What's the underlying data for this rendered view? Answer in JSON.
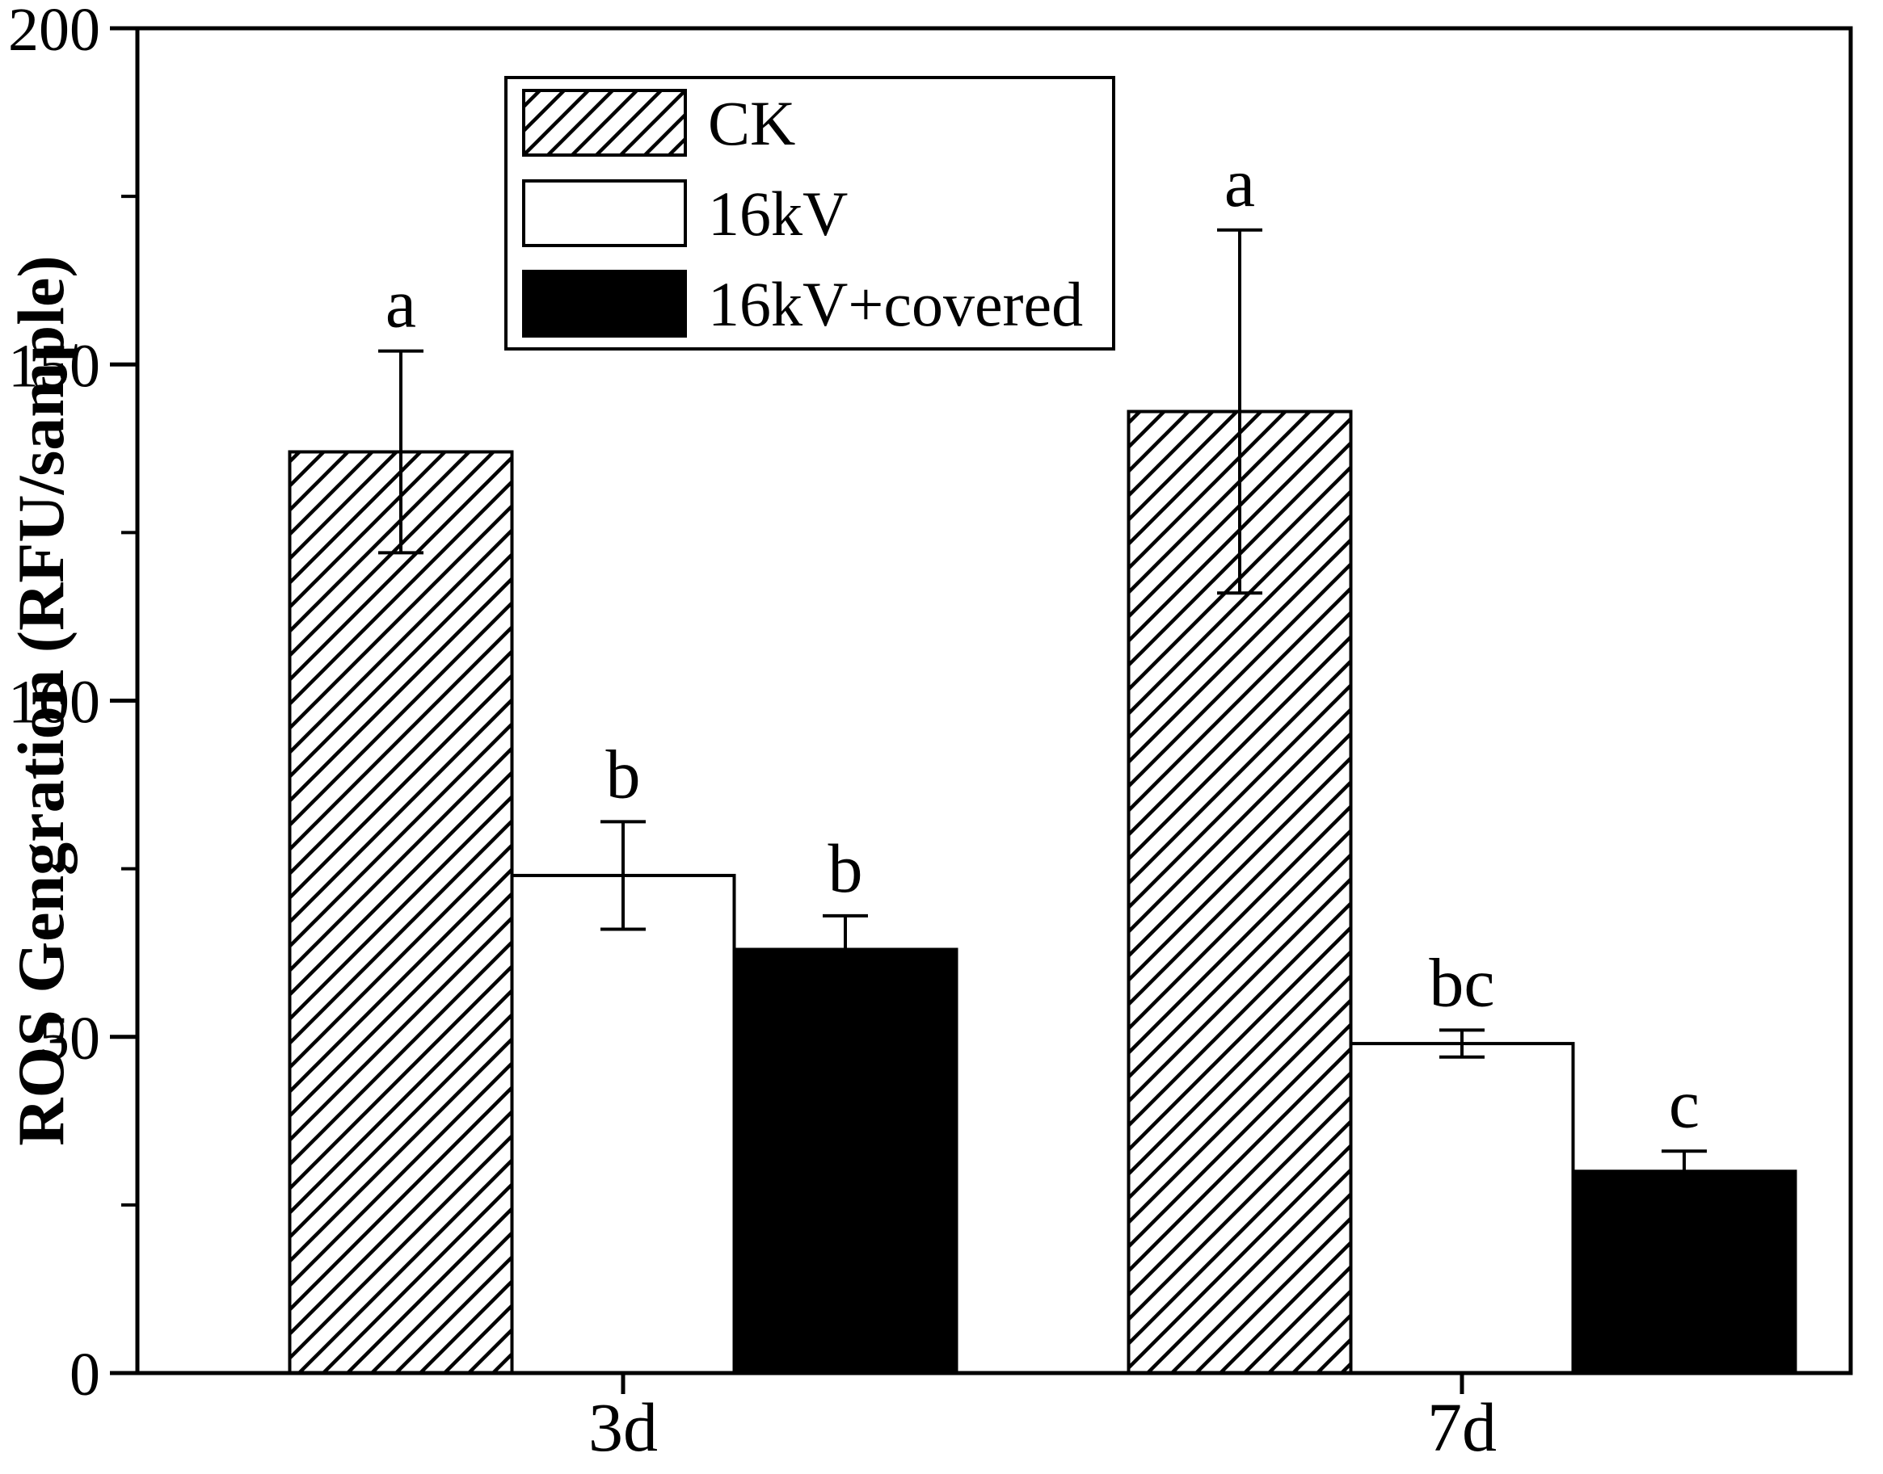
{
  "chart_data": {
    "type": "bar",
    "title": "",
    "xlabel": "",
    "ylabel": "ROS Gengration (RFU/sample)",
    "categories": [
      "3d",
      "7d"
    ],
    "series": [
      {
        "name": "CK",
        "style": "hatched",
        "values": [
          137,
          143
        ],
        "errors": [
          15,
          27
        ],
        "sig_letters": [
          "a",
          "a"
        ]
      },
      {
        "name": "16kV",
        "style": "white",
        "values": [
          74,
          49
        ],
        "errors": [
          8,
          2
        ],
        "sig_letters": [
          "b",
          "bc"
        ]
      },
      {
        "name": "16kV+covered",
        "style": "black",
        "values": [
          63,
          30
        ],
        "errors": [
          5,
          3
        ],
        "sig_letters": [
          "b",
          "c"
        ]
      }
    ],
    "ylim": [
      0,
      200
    ],
    "yticks": [
      0,
      50,
      100,
      150,
      200
    ],
    "minor_tick_step": 25,
    "grid": false,
    "legend_position": "top-left-inset",
    "legend_entries": [
      "CK",
      "16kV",
      "16kV+covered"
    ],
    "colors": {
      "foreground": "#000000",
      "background": "#ffffff"
    }
  }
}
